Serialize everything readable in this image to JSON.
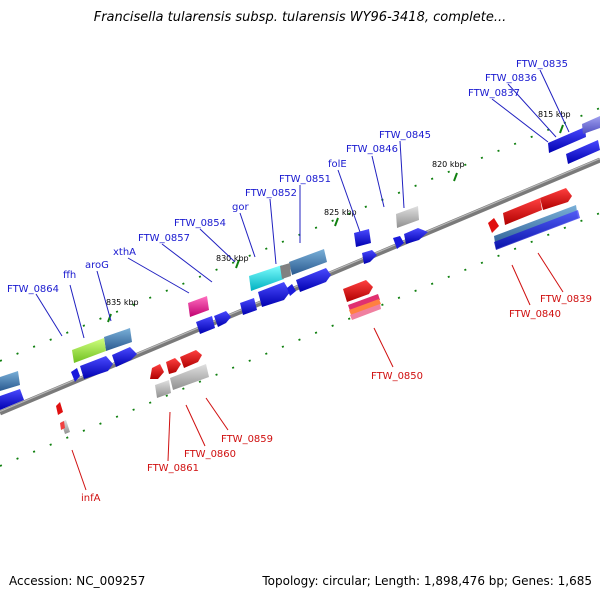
{
  "title": "Francisella tularensis subsp. tularensis WY96-3418, complete...",
  "footer": {
    "accession": "Accession: NC_009257",
    "summary": "Topology: circular; Length: 1,898,476 bp; Genes: 1,685"
  },
  "ticks": [
    "815 kbp",
    "820 kbp",
    "825 kbp",
    "830 kbp",
    "835 kbp"
  ],
  "labels_top": [
    "FTW_0835",
    "FTW_0836",
    "FTW_0837",
    "FTW_0845",
    "FTW_0846",
    "folE",
    "FTW_0851",
    "FTW_0852",
    "gor",
    "FTW_0854",
    "FTW_0857",
    "xthA",
    "aroG",
    "ffh",
    "FTW_0864"
  ],
  "labels_bottom": [
    "FTW_0839",
    "FTW_0840",
    "FTW_0850",
    "FTW_0859",
    "FTW_0860",
    "FTW_0861",
    "infA"
  ],
  "colors": {
    "forward": "#1a1adc",
    "reverse": "#e01010",
    "backbone": "#808080"
  }
}
